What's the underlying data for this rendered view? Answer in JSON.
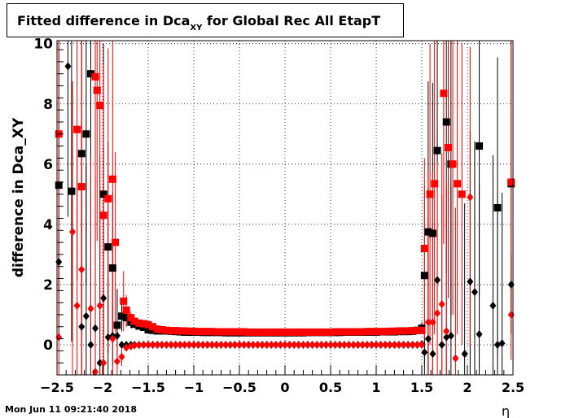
{
  "title": {
    "main": "Fitted difference in Dca",
    "sub": "XY",
    "suffix": " for Global Rec All EtapT"
  },
  "timestamp": "Mon Jun 11 09:21:40 2018",
  "chart_data": {
    "type": "scatter",
    "title": "Fitted difference in Dca_XY for Global Rec All EtapT",
    "xlabel": "η",
    "ylabel": "difference in Dca_XY",
    "xlim": [
      -2.5,
      2.5
    ],
    "ylim": [
      -1.0,
      10.1
    ],
    "x_ticks": [
      -2.5,
      -2,
      -1.5,
      -1,
      -0.5,
      0,
      0.5,
      1,
      1.5,
      2,
      2.5
    ],
    "x_tick_labels": [
      "−2.5",
      "−2",
      "−1.5",
      "−1",
      "−0.5",
      "0",
      "0.5",
      "1",
      "1.5",
      "2",
      "2.5"
    ],
    "y_ticks": [
      0,
      2,
      4,
      6,
      8,
      10
    ],
    "y_tick_labels": [
      "0",
      "2",
      "4",
      "6",
      "8",
      "10"
    ],
    "grid": true,
    "colors": {
      "black": "#000000",
      "red": "#ff0000"
    },
    "series": [
      {
        "color": "#000000",
        "marker": "square",
        "x": [
          -2.48,
          -2.34,
          -2.23,
          -2.18,
          -2.13,
          -1.99,
          -1.94,
          -1.89,
          -1.84,
          -1.79,
          -1.74,
          -1.69,
          -1.65,
          -1.6,
          -1.55,
          -1.5,
          -1.45,
          -1.4,
          -1.35,
          -1.3,
          -1.25,
          -1.2,
          -1.15,
          -1.1,
          -1.05,
          -1.0,
          -0.95,
          -0.9,
          -0.85,
          -0.8,
          -0.75,
          -0.7,
          -0.65,
          -0.6,
          -0.55,
          -0.5,
          -0.45,
          -0.4,
          -0.35,
          -0.3,
          -0.25,
          -0.2,
          -0.15,
          -0.1,
          -0.05,
          0.0,
          0.05,
          0.1,
          0.15,
          0.2,
          0.25,
          0.3,
          0.35,
          0.4,
          0.45,
          0.5,
          0.55,
          0.6,
          0.65,
          0.7,
          0.75,
          0.8,
          0.85,
          0.9,
          0.95,
          1.0,
          1.05,
          1.1,
          1.15,
          1.2,
          1.25,
          1.3,
          1.35,
          1.4,
          1.45,
          1.5,
          1.53,
          1.57,
          1.62,
          1.67,
          1.77,
          1.82,
          2.13,
          2.33,
          2.48
        ],
        "y": [
          5.3,
          5.1,
          6.35,
          7.0,
          9.0,
          5.0,
          3.25,
          2.55,
          0.65,
          0.95,
          0.9,
          0.75,
          0.68,
          0.62,
          0.58,
          0.5,
          0.48,
          0.46,
          0.46,
          0.46,
          0.45,
          0.44,
          0.43,
          0.42,
          0.42,
          0.42,
          0.42,
          0.41,
          0.41,
          0.41,
          0.41,
          0.41,
          0.4,
          0.4,
          0.4,
          0.4,
          0.4,
          0.4,
          0.4,
          0.4,
          0.4,
          0.4,
          0.4,
          0.4,
          0.4,
          0.4,
          0.4,
          0.4,
          0.4,
          0.4,
          0.41,
          0.41,
          0.41,
          0.41,
          0.41,
          0.41,
          0.41,
          0.41,
          0.42,
          0.42,
          0.42,
          0.42,
          0.42,
          0.42,
          0.42,
          0.42,
          0.43,
          0.43,
          0.43,
          0.43,
          0.44,
          0.44,
          0.44,
          0.45,
          0.48,
          0.55,
          2.3,
          3.75,
          3.7,
          6.45,
          7.4,
          6.0,
          6.6,
          4.55,
          5.35
        ],
        "err": [
          5.0,
          5.0,
          5.0,
          5.0,
          5.0,
          5.0,
          3.5,
          2.5,
          1.2,
          0.5,
          0.3,
          0.2,
          0.1,
          0.06,
          0.05,
          0.04,
          0.04,
          0.03,
          0.03,
          0.03,
          0.03,
          0.03,
          0.03,
          0.03,
          0.03,
          0.03,
          0.03,
          0.03,
          0.03,
          0.03,
          0.03,
          0.03,
          0.03,
          0.03,
          0.03,
          0.03,
          0.03,
          0.03,
          0.03,
          0.03,
          0.03,
          0.03,
          0.03,
          0.03,
          0.03,
          0.03,
          0.03,
          0.03,
          0.03,
          0.03,
          0.03,
          0.03,
          0.03,
          0.03,
          0.03,
          0.03,
          0.03,
          0.03,
          0.03,
          0.03,
          0.03,
          0.03,
          0.03,
          0.03,
          0.03,
          0.03,
          0.03,
          0.03,
          0.03,
          0.03,
          0.03,
          0.03,
          0.03,
          0.04,
          0.06,
          0.2,
          3.0,
          5.0,
          5.0,
          5.0,
          5.0,
          5.0,
          5.0,
          5.0,
          5.0
        ]
      },
      {
        "color": "#000000",
        "marker": "diamond",
        "x": [
          -2.48,
          -2.38,
          -2.23,
          -2.18,
          -2.13,
          -2.08,
          -2.03,
          -1.99,
          -1.94,
          -1.89,
          -1.84,
          -1.79,
          -1.74,
          -1.69,
          -1.65,
          -1.6,
          -1.55,
          -1.5,
          -1.45,
          -1.4,
          -1.35,
          -1.3,
          -1.25,
          -1.2,
          -1.15,
          -1.1,
          -1.05,
          -1.0,
          -0.95,
          -0.9,
          -0.85,
          -0.8,
          -0.75,
          -0.7,
          -0.65,
          -0.6,
          -0.55,
          -0.5,
          -0.45,
          -0.4,
          -0.35,
          -0.3,
          -0.25,
          -0.2,
          -0.15,
          -0.1,
          -0.05,
          0.0,
          0.05,
          0.1,
          0.15,
          0.2,
          0.25,
          0.3,
          0.35,
          0.4,
          0.45,
          0.5,
          0.55,
          0.6,
          0.65,
          0.7,
          0.75,
          0.8,
          0.85,
          0.9,
          0.95,
          1.0,
          1.05,
          1.1,
          1.15,
          1.2,
          1.25,
          1.3,
          1.35,
          1.4,
          1.45,
          1.5,
          1.53,
          1.57,
          1.62,
          1.67,
          1.72,
          1.77,
          1.82,
          1.97,
          2.03,
          2.08,
          2.13,
          2.28,
          2.33,
          2.38,
          2.48
        ],
        "y": [
          2.75,
          9.25,
          0.6,
          0.95,
          0.0,
          0.55,
          -0.6,
          1.55,
          0.25,
          0.3,
          0.3,
          0.0,
          0.0,
          0.0,
          0.0,
          0.0,
          0.0,
          0.0,
          0.0,
          0.0,
          0.0,
          0.0,
          0.0,
          0.0,
          0.0,
          0.0,
          0.0,
          0.0,
          0.0,
          0.0,
          0.0,
          0.0,
          0.0,
          0.0,
          0.0,
          0.0,
          0.0,
          0.0,
          0.0,
          0.0,
          0.0,
          0.0,
          0.0,
          0.0,
          0.0,
          0.0,
          0.0,
          0.0,
          0.0,
          0.0,
          0.0,
          0.0,
          0.0,
          0.0,
          0.0,
          0.0,
          0.0,
          0.0,
          0.0,
          0.0,
          0.0,
          0.0,
          0.0,
          0.0,
          0.0,
          0.0,
          0.0,
          0.0,
          0.0,
          0.0,
          0.0,
          0.0,
          0.0,
          0.0,
          0.0,
          0.0,
          0.0,
          0.02,
          -0.25,
          0.2,
          -0.3,
          2.15,
          0.0,
          0.25,
          0.3,
          -0.3,
          2.1,
          1.75,
          0.35,
          1.3,
          0.0,
          0.05,
          2.0
        ],
        "err": [
          1.0,
          5.0,
          5.0,
          5.0,
          5.0,
          5.0,
          5.0,
          5.0,
          2.0,
          1.0,
          0.3,
          0.1,
          0.05,
          0.04,
          0.03,
          0.03,
          0.02,
          0.02,
          0.02,
          0.02,
          0.02,
          0.02,
          0.02,
          0.02,
          0.02,
          0.02,
          0.02,
          0.02,
          0.02,
          0.02,
          0.02,
          0.02,
          0.02,
          0.02,
          0.02,
          0.02,
          0.02,
          0.02,
          0.02,
          0.02,
          0.02,
          0.02,
          0.02,
          0.02,
          0.02,
          0.02,
          0.02,
          0.02,
          0.02,
          0.02,
          0.02,
          0.02,
          0.02,
          0.02,
          0.02,
          0.02,
          0.02,
          0.02,
          0.02,
          0.02,
          0.02,
          0.02,
          0.02,
          0.02,
          0.02,
          0.02,
          0.02,
          0.02,
          0.02,
          0.02,
          0.02,
          0.02,
          0.02,
          0.02,
          0.02,
          0.03,
          0.05,
          0.1,
          1.0,
          5.0,
          5.0,
          5.0,
          5.0,
          5.0,
          5.0,
          5.0,
          5.0,
          5.0,
          5.0,
          5.0,
          5.0,
          5.0,
          1.0
        ]
      },
      {
        "color": "#ff0000",
        "marker": "square",
        "x": [
          -2.48,
          -2.28,
          -2.23,
          -2.08,
          -2.06,
          -2.03,
          -1.99,
          -1.94,
          -1.89,
          -1.86,
          -1.77,
          -1.74,
          -1.69,
          -1.65,
          -1.6,
          -1.55,
          -1.5,
          -1.45,
          -1.4,
          -1.35,
          -1.3,
          -1.25,
          -1.2,
          -1.15,
          -1.1,
          -1.05,
          -1.0,
          -0.95,
          -0.9,
          -0.85,
          -0.8,
          -0.75,
          -0.7,
          -0.65,
          -0.6,
          -0.55,
          -0.5,
          -0.45,
          -0.4,
          -0.35,
          -0.3,
          -0.25,
          -0.2,
          -0.15,
          -0.1,
          -0.05,
          0.0,
          0.05,
          0.1,
          0.15,
          0.2,
          0.25,
          0.3,
          0.35,
          0.4,
          0.45,
          0.5,
          0.55,
          0.6,
          0.65,
          0.7,
          0.75,
          0.8,
          0.85,
          0.9,
          0.95,
          1.0,
          1.05,
          1.1,
          1.15,
          1.2,
          1.25,
          1.3,
          1.35,
          1.4,
          1.45,
          1.5,
          1.53,
          1.59,
          1.64,
          1.74,
          1.79,
          1.84,
          1.89,
          1.94,
          2.48
        ],
        "y": [
          7.0,
          7.15,
          5.25,
          8.9,
          8.45,
          7.95,
          4.3,
          4.85,
          5.5,
          3.4,
          1.45,
          1.15,
          0.9,
          0.78,
          0.72,
          0.7,
          0.67,
          0.6,
          0.52,
          0.5,
          0.48,
          0.47,
          0.47,
          0.46,
          0.46,
          0.45,
          0.45,
          0.44,
          0.44,
          0.44,
          0.44,
          0.43,
          0.43,
          0.43,
          0.43,
          0.43,
          0.43,
          0.43,
          0.42,
          0.42,
          0.42,
          0.42,
          0.42,
          0.42,
          0.42,
          0.42,
          0.42,
          0.42,
          0.42,
          0.42,
          0.42,
          0.42,
          0.42,
          0.42,
          0.42,
          0.42,
          0.42,
          0.43,
          0.43,
          0.43,
          0.43,
          0.43,
          0.43,
          0.43,
          0.44,
          0.44,
          0.44,
          0.44,
          0.44,
          0.45,
          0.45,
          0.46,
          0.46,
          0.46,
          0.47,
          0.47,
          0.48,
          3.2,
          5.0,
          5.35,
          8.35,
          6.55,
          6.0,
          5.35,
          5.0,
          5.4
        ],
        "err": [
          5.0,
          5.0,
          5.0,
          5.0,
          5.0,
          5.0,
          5.0,
          5.0,
          5.0,
          3.0,
          1.0,
          0.5,
          0.2,
          0.1,
          0.06,
          0.05,
          0.04,
          0.04,
          0.03,
          0.03,
          0.03,
          0.03,
          0.03,
          0.03,
          0.03,
          0.03,
          0.03,
          0.03,
          0.03,
          0.03,
          0.03,
          0.03,
          0.03,
          0.03,
          0.03,
          0.03,
          0.03,
          0.03,
          0.03,
          0.03,
          0.03,
          0.03,
          0.03,
          0.03,
          0.03,
          0.03,
          0.03,
          0.03,
          0.03,
          0.03,
          0.03,
          0.03,
          0.03,
          0.03,
          0.03,
          0.03,
          0.03,
          0.03,
          0.03,
          0.03,
          0.03,
          0.03,
          0.03,
          0.03,
          0.03,
          0.03,
          0.03,
          0.03,
          0.03,
          0.03,
          0.03,
          0.03,
          0.03,
          0.03,
          0.03,
          0.04,
          0.06,
          3.0,
          5.0,
          5.0,
          5.0,
          5.0,
          5.0,
          5.0,
          5.0,
          5.0
        ]
      },
      {
        "color": "#ff0000",
        "marker": "diamond",
        "x": [
          -2.48,
          -2.33,
          -2.28,
          -2.23,
          -2.13,
          -2.08,
          -2.03,
          -1.99,
          -1.89,
          -1.84,
          -1.79,
          -1.74,
          -1.69,
          -1.65,
          -1.6,
          -1.55,
          -1.5,
          -1.45,
          -1.4,
          -1.35,
          -1.3,
          -1.25,
          -1.2,
          -1.15,
          -1.1,
          -1.05,
          -1.0,
          -0.95,
          -0.9,
          -0.85,
          -0.8,
          -0.75,
          -0.7,
          -0.65,
          -0.6,
          -0.55,
          -0.5,
          -0.45,
          -0.4,
          -0.35,
          -0.3,
          -0.25,
          -0.2,
          -0.15,
          -0.1,
          -0.05,
          0.0,
          0.05,
          0.1,
          0.15,
          0.2,
          0.25,
          0.3,
          0.35,
          0.4,
          0.45,
          0.5,
          0.55,
          0.6,
          0.65,
          0.7,
          0.75,
          0.8,
          0.85,
          0.9,
          0.95,
          1.0,
          1.05,
          1.1,
          1.15,
          1.2,
          1.25,
          1.3,
          1.35,
          1.4,
          1.45,
          1.5,
          1.57,
          1.62,
          1.67,
          1.72,
          1.77,
          1.87,
          2.03,
          2.48
        ],
        "y": [
          0.25,
          3.75,
          1.3,
          2.5,
          1.2,
          -0.9,
          1.3,
          -0.6,
          0.2,
          -0.55,
          -0.4,
          -0.1,
          -0.05,
          -0.02,
          -0.01,
          0.0,
          0.0,
          0.0,
          0.0,
          0.0,
          0.0,
          0.0,
          0.0,
          0.0,
          0.0,
          0.0,
          0.0,
          0.0,
          0.0,
          0.0,
          0.0,
          0.0,
          0.0,
          0.0,
          0.0,
          0.0,
          0.0,
          0.0,
          0.0,
          0.0,
          0.0,
          0.0,
          0.0,
          0.0,
          0.0,
          0.0,
          0.0,
          0.0,
          0.0,
          0.0,
          0.0,
          0.0,
          0.0,
          0.0,
          0.0,
          0.0,
          0.0,
          0.0,
          0.0,
          0.0,
          0.0,
          0.0,
          0.0,
          0.0,
          0.0,
          0.0,
          0.0,
          0.0,
          0.0,
          0.0,
          0.0,
          0.0,
          0.0,
          0.0,
          0.0,
          0.0,
          0.0,
          0.75,
          0.75,
          1.05,
          1.35,
          0.45,
          -0.45,
          4.9,
          1.0
        ],
        "err": [
          2.0,
          5.0,
          5.0,
          5.0,
          5.0,
          5.0,
          5.0,
          5.0,
          3.0,
          1.0,
          0.3,
          0.1,
          0.05,
          0.03,
          0.02,
          0.02,
          0.02,
          0.02,
          0.02,
          0.02,
          0.02,
          0.02,
          0.02,
          0.02,
          0.02,
          0.02,
          0.02,
          0.02,
          0.02,
          0.02,
          0.02,
          0.02,
          0.02,
          0.02,
          0.02,
          0.02,
          0.02,
          0.02,
          0.02,
          0.02,
          0.02,
          0.02,
          0.02,
          0.02,
          0.02,
          0.02,
          0.02,
          0.02,
          0.02,
          0.02,
          0.02,
          0.02,
          0.02,
          0.02,
          0.02,
          0.02,
          0.02,
          0.02,
          0.02,
          0.02,
          0.02,
          0.02,
          0.02,
          0.02,
          0.02,
          0.02,
          0.02,
          0.02,
          0.02,
          0.02,
          0.02,
          0.02,
          0.02,
          0.02,
          0.02,
          0.03,
          0.05,
          5.0,
          5.0,
          5.0,
          5.0,
          5.0,
          5.0,
          5.0,
          1.5
        ]
      }
    ]
  }
}
